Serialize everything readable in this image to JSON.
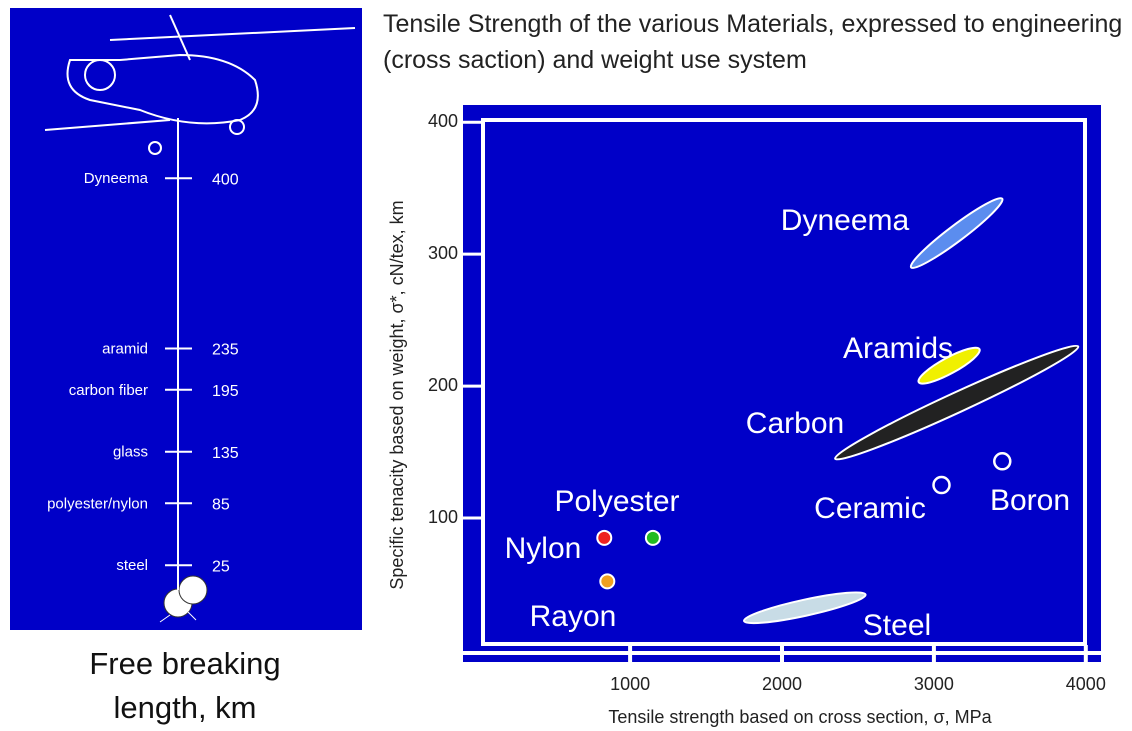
{
  "chart_data": [
    {
      "type": "ladder",
      "caption": "Free breaking length, km",
      "categories": [
        "Dyneema",
        "aramid",
        "carbon fiber",
        "glass",
        "polyester/nylon",
        "steel"
      ],
      "values": [
        400,
        235,
        195,
        135,
        85,
        25
      ],
      "ylim": [
        0,
        440
      ],
      "color": "#0000c8"
    },
    {
      "type": "region",
      "title": "Tensile Strength of the various Materials, expressed to engineering (cross saction) and weight use system",
      "x_label": "Tensile strength based on cross section, σ, MPa",
      "y_label": "Specific tenacity based on weight, σ*, cN/tex, km",
      "xlim": [
        -100,
        4100
      ],
      "ylim": [
        0,
        410
      ],
      "xticks": [
        1000,
        2000,
        3000,
        4000
      ],
      "yticks": [
        100,
        200,
        300,
        400
      ],
      "background": "#0000c8",
      "series": [
        {
          "name": "Dyneema",
          "shape": "ellipse",
          "color": "#5b8def",
          "x": [
            2850,
            3450
          ],
          "y": [
            290,
            342
          ]
        },
        {
          "name": "Aramids",
          "shape": "ellipse",
          "color": "#f0f000",
          "x": [
            2900,
            3300
          ],
          "y": [
            203,
            228
          ]
        },
        {
          "name": "Carbon",
          "shape": "ellipse",
          "color": "#222222",
          "x": [
            2350,
            3950
          ],
          "y": [
            145,
            230
          ]
        },
        {
          "name": "Steel",
          "shape": "ellipse",
          "color": "#c8dce6",
          "x": [
            1750,
            2550
          ],
          "y": [
            22,
            42
          ]
        },
        {
          "name": "Polyester",
          "shape": "point",
          "color": "#22bb22",
          "x": [
            1150
          ],
          "y": [
            85
          ]
        },
        {
          "name": "Nylon",
          "shape": "point",
          "color": "#ee2222",
          "x": [
            830
          ],
          "y": [
            85
          ]
        },
        {
          "name": "Rayon",
          "shape": "point",
          "color": "#f0a020",
          "x": [
            850
          ],
          "y": [
            52
          ]
        },
        {
          "name": "Ceramic",
          "shape": "ring",
          "color": "#ffffff",
          "x": [
            3050
          ],
          "y": [
            125
          ]
        },
        {
          "name": "Boron",
          "shape": "ring",
          "color": "#ffffff",
          "x": [
            3450
          ],
          "y": [
            143
          ]
        }
      ]
    }
  ]
}
